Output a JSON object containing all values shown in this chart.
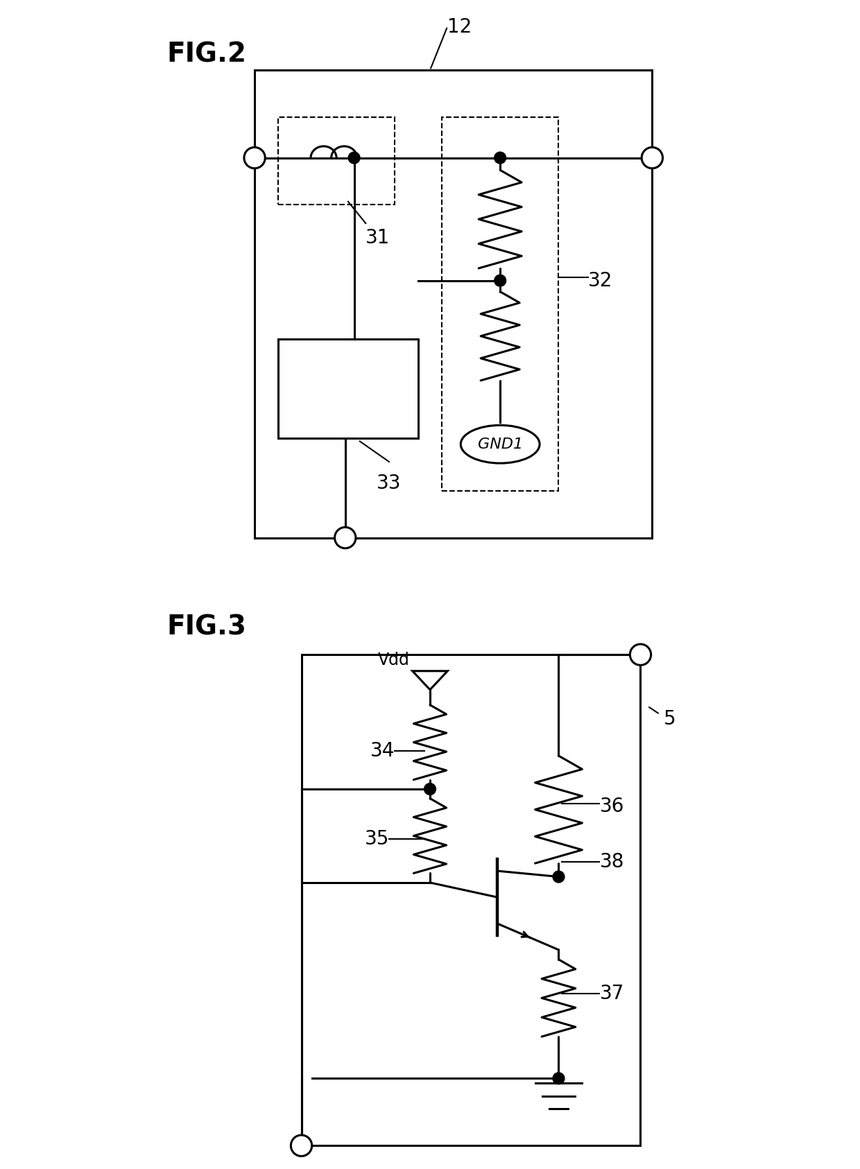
{
  "fig2_label": "FIG.2",
  "fig3_label": "FIG.3",
  "label_12": "12",
  "label_31": "31",
  "label_32": "32",
  "label_33": "33",
  "label_34": "34",
  "label_35": "35",
  "label_36": "36",
  "label_37": "37",
  "label_38": "38",
  "label_5": "5",
  "label_vdd": "Vdd",
  "label_gnd1": "GND1",
  "bg_color": "#ffffff",
  "line_color": "#000000",
  "line_width": 2.2,
  "font_size_fig": 28,
  "font_size_num": 20,
  "font_size_gnd": 16
}
